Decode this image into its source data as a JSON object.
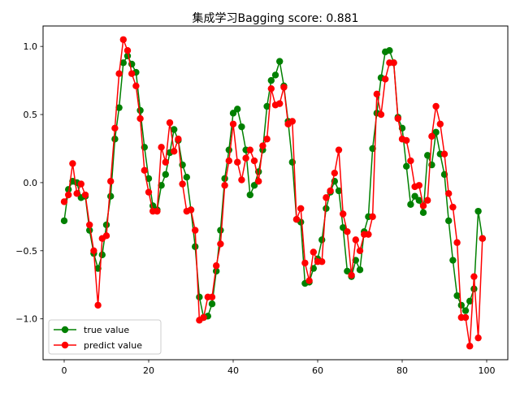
{
  "chart_data": {
    "type": "line",
    "title": "集成学习Bagging   score: 0.881",
    "xlabel": "",
    "ylabel": "",
    "xlim": [
      -5,
      105
    ],
    "ylim": [
      -1.3,
      1.15
    ],
    "xticks": [
      0,
      20,
      40,
      60,
      80,
      100
    ],
    "yticks": [
      -1.0,
      -0.5,
      0.0,
      0.5,
      1.0
    ],
    "xtick_labels": [
      "0",
      "20",
      "40",
      "60",
      "80",
      "100"
    ],
    "ytick_labels": [
      "−1.0",
      "−0.5",
      "0.0",
      "0.5",
      "1.0"
    ],
    "grid": false,
    "legend_position": "lower-left",
    "series": [
      {
        "name": "true value",
        "color": "#008000",
        "marker": "circle",
        "x": [
          0,
          1,
          2,
          3,
          4,
          5,
          6,
          7,
          8,
          9,
          10,
          11,
          12,
          13,
          14,
          15,
          16,
          17,
          18,
          19,
          20,
          21,
          22,
          23,
          24,
          25,
          26,
          27,
          28,
          29,
          30,
          31,
          32,
          33,
          34,
          35,
          36,
          37,
          38,
          39,
          40,
          41,
          42,
          43,
          44,
          45,
          46,
          47,
          48,
          49,
          50,
          51,
          52,
          53,
          54,
          55,
          56,
          57,
          58,
          59,
          60,
          61,
          62,
          63,
          64,
          65,
          66,
          67,
          68,
          69,
          70,
          71,
          72,
          73,
          74,
          75,
          76,
          77,
          78,
          79,
          80,
          81,
          82,
          83,
          84,
          85,
          86,
          87,
          88,
          89,
          90,
          91,
          92,
          93,
          94,
          95,
          96,
          97,
          98,
          99
        ],
        "values": [
          -0.28,
          -0.05,
          0.01,
          0.0,
          -0.11,
          -0.1,
          -0.35,
          -0.52,
          -0.63,
          -0.53,
          -0.31,
          -0.1,
          0.32,
          0.55,
          0.88,
          0.93,
          0.87,
          0.81,
          0.53,
          0.26,
          0.03,
          -0.17,
          -0.2,
          -0.02,
          0.06,
          0.22,
          0.39,
          0.31,
          0.13,
          0.04,
          -0.2,
          -0.47,
          -0.84,
          -0.99,
          -0.98,
          -0.89,
          -0.65,
          -0.35,
          0.03,
          0.24,
          0.51,
          0.54,
          0.41,
          0.24,
          -0.09,
          -0.02,
          0.08,
          0.24,
          0.56,
          0.75,
          0.79,
          0.89,
          0.71,
          0.45,
          0.15,
          -0.27,
          -0.29,
          -0.74,
          -0.73,
          -0.63,
          -0.56,
          -0.42,
          -0.19,
          -0.07,
          0.01,
          -0.06,
          -0.33,
          -0.65,
          -0.69,
          -0.57,
          -0.64,
          -0.36,
          -0.25,
          0.25,
          0.51,
          0.77,
          0.96,
          0.97,
          0.88,
          0.48,
          0.4,
          0.12,
          -0.16,
          -0.1,
          -0.13,
          -0.22,
          0.2,
          0.13,
          0.37,
          0.21,
          0.06,
          -0.28,
          -0.57,
          -0.83,
          -0.9,
          -0.94,
          -0.87,
          -0.78,
          -0.21,
          -0.41
        ]
      },
      {
        "name": "predict value",
        "color": "#ff0000",
        "marker": "circle",
        "x": [
          0,
          1,
          2,
          3,
          4,
          5,
          6,
          7,
          8,
          9,
          10,
          11,
          12,
          13,
          14,
          15,
          16,
          17,
          18,
          19,
          20,
          21,
          22,
          23,
          24,
          25,
          26,
          27,
          28,
          29,
          30,
          31,
          32,
          33,
          34,
          35,
          36,
          37,
          38,
          39,
          40,
          41,
          42,
          43,
          44,
          45,
          46,
          47,
          48,
          49,
          50,
          51,
          52,
          53,
          54,
          55,
          56,
          57,
          58,
          59,
          60,
          61,
          62,
          63,
          64,
          65,
          66,
          67,
          68,
          69,
          70,
          71,
          72,
          73,
          74,
          75,
          76,
          77,
          78,
          79,
          80,
          81,
          82,
          83,
          84,
          85,
          86,
          87,
          88,
          89,
          90,
          91,
          92,
          93,
          94,
          95,
          96,
          97,
          98,
          99
        ],
        "values": [
          -0.14,
          -0.09,
          0.14,
          -0.08,
          -0.01,
          -0.09,
          -0.31,
          -0.5,
          -0.9,
          -0.41,
          -0.39,
          0.01,
          0.4,
          0.8,
          1.05,
          0.97,
          0.8,
          0.71,
          0.47,
          0.09,
          -0.07,
          -0.21,
          -0.21,
          0.26,
          0.15,
          0.44,
          0.23,
          0.32,
          -0.01,
          -0.21,
          -0.2,
          -0.35,
          -1.01,
          -0.99,
          -0.84,
          -0.84,
          -0.61,
          -0.45,
          -0.02,
          0.16,
          0.43,
          0.15,
          0.02,
          0.18,
          0.24,
          0.16,
          0.01,
          0.27,
          0.32,
          0.69,
          0.57,
          0.58,
          0.7,
          0.43,
          0.45,
          -0.27,
          -0.19,
          -0.59,
          -0.72,
          -0.51,
          -0.58,
          -0.58,
          -0.11,
          -0.06,
          0.07,
          0.24,
          -0.23,
          -0.36,
          -0.68,
          -0.42,
          -0.5,
          -0.38,
          -0.38,
          -0.25,
          0.65,
          0.5,
          0.76,
          0.88,
          0.88,
          0.47,
          0.32,
          0.31,
          0.16,
          -0.03,
          -0.02,
          -0.17,
          -0.13,
          0.34,
          0.56,
          0.43,
          0.21,
          -0.08,
          -0.18,
          -0.44,
          -0.99,
          -0.99,
          -1.2,
          -0.69,
          -1.14,
          -0.41
        ]
      }
    ]
  }
}
